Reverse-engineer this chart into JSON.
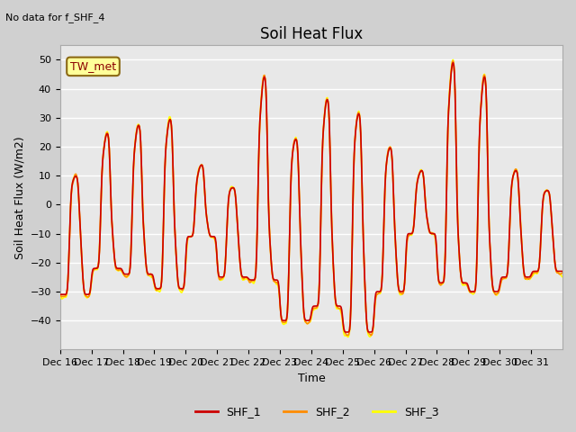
{
  "title": "Soil Heat Flux",
  "subtitle": "No data for f_SHF_4",
  "ylabel": "Soil Heat Flux (W/m2)",
  "xlabel": "Time",
  "ylim": [
    -50,
    55
  ],
  "bg_color": "#e8e8e8",
  "grid_color": "white",
  "shf1_color": "#cc0000",
  "shf2_color": "#ff8c00",
  "shf3_color": "#ffff00",
  "tw_met_box_color": "#ffff99",
  "tw_met_border_color": "#8b6914",
  "xtick_labels": [
    "Dec 16",
    "Dec 17",
    "Dec 18",
    "Dec 19",
    "Dec 20",
    "Dec 21",
    "Dec 22",
    "Dec 23",
    "Dec 24",
    "Dec 25",
    "Dec 26",
    "Dec 27",
    "Dec 28",
    "Dec 29",
    "Dec 30",
    "Dec 31"
  ],
  "legend_items": [
    "SHF_1",
    "SHF_2",
    "SHF_3"
  ]
}
